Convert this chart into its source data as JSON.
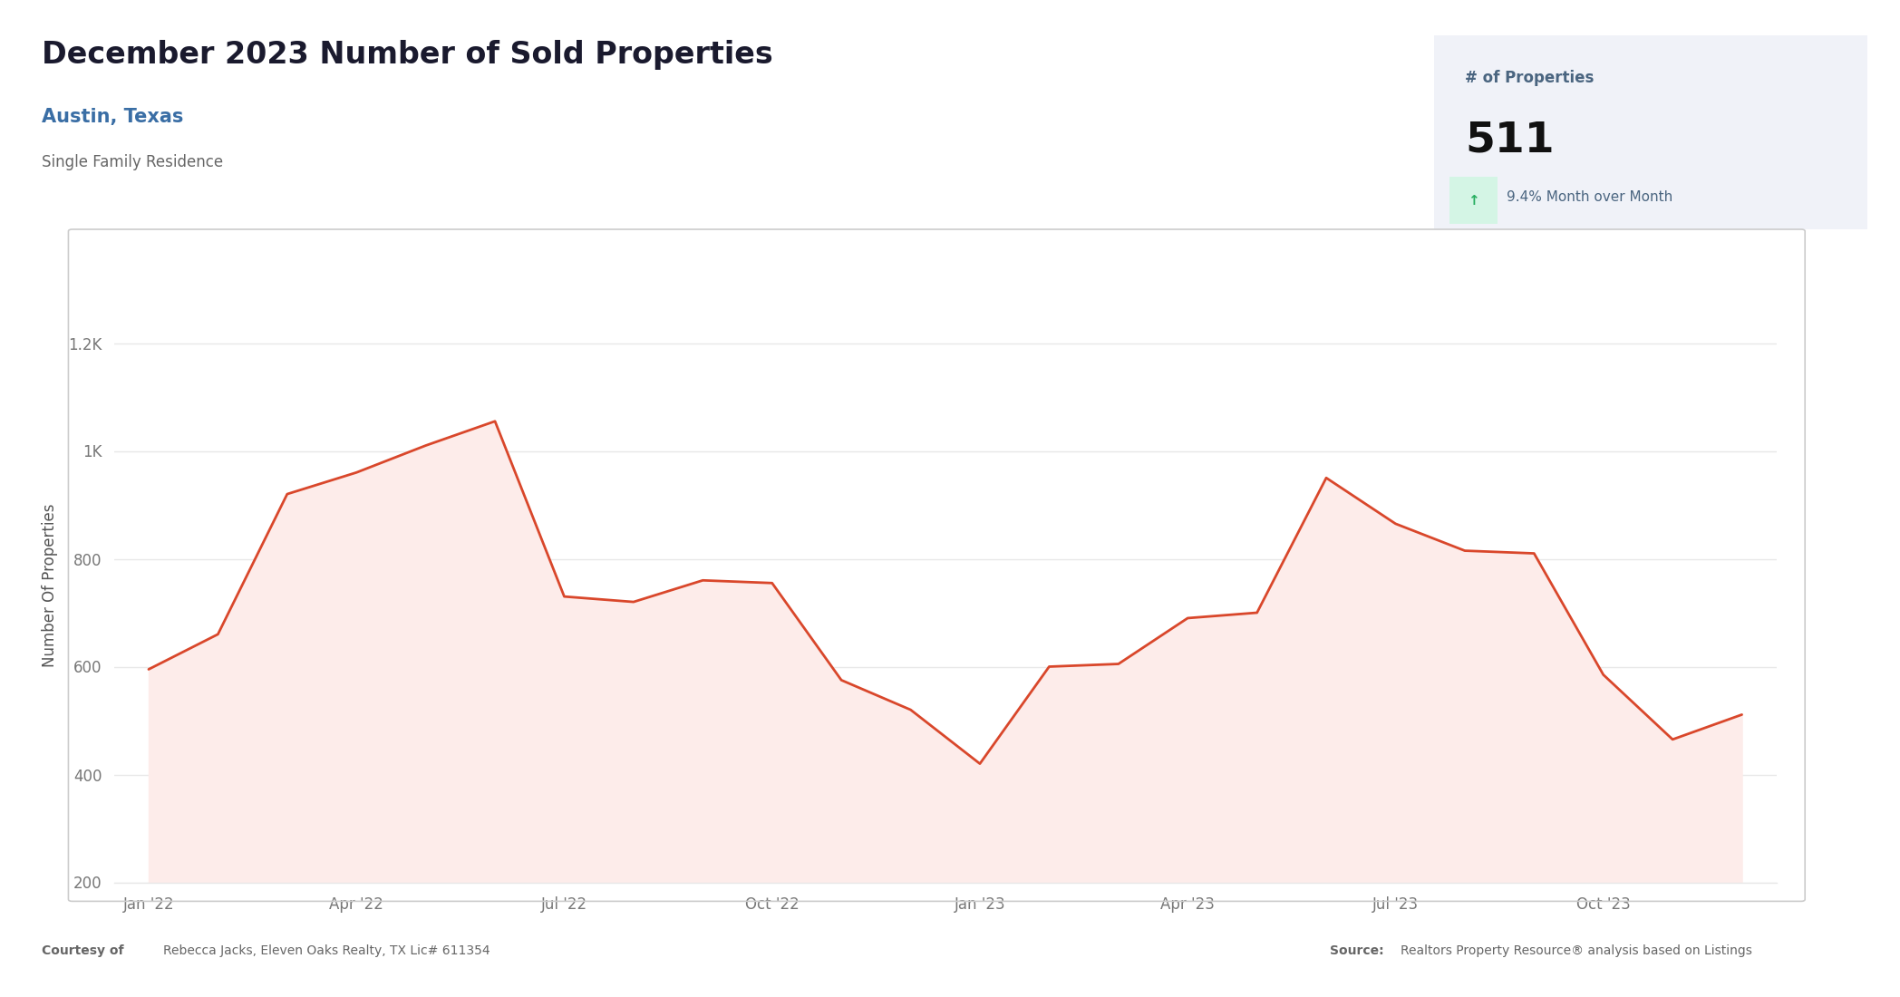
{
  "title": "December 2023 Number of Sold Properties",
  "subtitle": "Austin, Texas",
  "subtitle2": "Single Family Residence",
  "stat_label": "# of Properties",
  "stat_value": "511",
  "stat_change": "9.4% Month over Month",
  "ylabel": "Number Of Properties",
  "background_color": "#ffffff",
  "chart_bg": "#ffffff",
  "line_color": "#d9472b",
  "fill_color": "#fdecea",
  "grid_color": "#e8e8e8",
  "months": [
    "Jan '22",
    "Apr '22",
    "Jul '22",
    "Oct '22",
    "Jan '23",
    "Apr '23",
    "Jul '23",
    "Oct '23"
  ],
  "x_tick_positions": [
    0,
    3,
    6,
    9,
    12,
    15,
    18,
    21
  ],
  "data_x": [
    0,
    1,
    2,
    3,
    4,
    5,
    6,
    7,
    8,
    9,
    10,
    11,
    12,
    13,
    14,
    15,
    16,
    17,
    18,
    19,
    20,
    21,
    22,
    23
  ],
  "data_y": [
    595,
    660,
    920,
    960,
    1010,
    1055,
    730,
    720,
    760,
    755,
    575,
    520,
    420,
    600,
    605,
    690,
    700,
    950,
    865,
    815,
    810,
    585,
    465,
    511
  ],
  "ylim": [
    200,
    1300
  ],
  "ytick_vals": [
    200,
    400,
    600,
    800,
    1000,
    1200
  ],
  "box_bg": "#f0f2f8",
  "box_label_color": "#4a6580",
  "title_color": "#1a1a2e",
  "subtitle_color": "#3a6ea5",
  "subtitle2_color": "#666666",
  "tick_color": "#777777",
  "footer_color": "#666666"
}
